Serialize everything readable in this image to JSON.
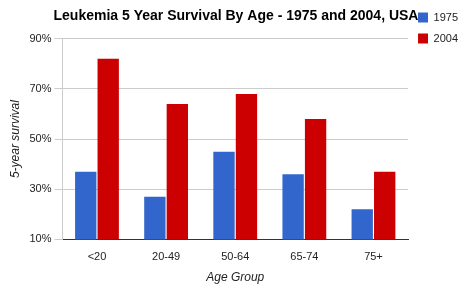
{
  "chart_data": {
    "type": "bar",
    "title": "Leukemia 5 Year Survival By Age - 1975 and 2004, USA",
    "x_label": "Age Group",
    "y_label": "5-year survival",
    "categories": [
      "<20",
      "20-49",
      "50-64",
      "65-74",
      "75+"
    ],
    "series": [
      {
        "name": "1975",
        "color": "#3366cc",
        "values": [
          37,
          27,
          45,
          36,
          22
        ]
      },
      {
        "name": "2004",
        "color": "#cc0000",
        "values": [
          82,
          64,
          68,
          58,
          37
        ]
      }
    ],
    "ylim": [
      10,
      90
    ],
    "yticks": [
      {
        "value": 10,
        "label": "10%"
      },
      {
        "value": 30,
        "label": "30%"
      },
      {
        "value": 50,
        "label": "50%"
      },
      {
        "value": 70,
        "label": "70%"
      },
      {
        "value": 90,
        "label": "90%"
      }
    ],
    "grid": true,
    "legend": "right"
  }
}
